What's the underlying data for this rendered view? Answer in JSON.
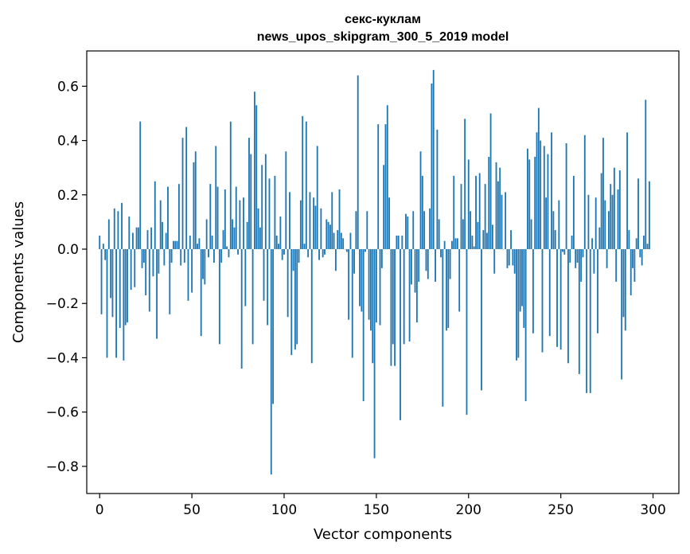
{
  "chart_data": {
    "type": "bar",
    "title": "секс-куклам",
    "subtitle": "news_upos_skipgram_300_5_2019 model",
    "xlabel": "Vector components",
    "ylabel": "Components values",
    "xlim": [
      -7,
      314
    ],
    "ylim": [
      -0.9,
      0.73
    ],
    "x_ticks": [
      0,
      50,
      100,
      150,
      200,
      250,
      300
    ],
    "x_tick_labels": [
      "0",
      "50",
      "100",
      "150",
      "200",
      "250",
      "300"
    ],
    "y_ticks": [
      -0.8,
      -0.6,
      -0.4,
      -0.2,
      0.0,
      0.2,
      0.4,
      0.6
    ],
    "y_tick_labels": [
      "−0.8",
      "−0.6",
      "−0.4",
      "−0.2",
      "0.0",
      "0.2",
      "0.4",
      "0.6"
    ],
    "grid": false,
    "bar_color": "#1f77b4",
    "values": [
      0.05,
      -0.24,
      0.02,
      -0.04,
      -0.4,
      0.11,
      -0.18,
      -0.25,
      0.15,
      -0.4,
      0.14,
      -0.29,
      0.17,
      -0.41,
      -0.28,
      -0.27,
      0.12,
      -0.15,
      0.06,
      -0.14,
      0.08,
      0.08,
      0.47,
      -0.07,
      -0.05,
      -0.17,
      0.07,
      -0.23,
      0.08,
      -0.1,
      0.25,
      -0.33,
      -0.09,
      0.18,
      0.1,
      -0.06,
      0.06,
      0.23,
      -0.24,
      -0.05,
      0.03,
      0.03,
      0.03,
      0.24,
      -0.06,
      0.41,
      -0.05,
      0.45,
      -0.19,
      0.05,
      -0.16,
      0.32,
      0.36,
      0.02,
      0.04,
      -0.32,
      -0.11,
      -0.13,
      0.11,
      -0.03,
      0.24,
      0.05,
      -0.05,
      0.38,
      0.23,
      -0.35,
      -0.05,
      0.07,
      0.22,
      0.01,
      -0.03,
      0.47,
      0.11,
      0.08,
      0.23,
      -0.02,
      0.18,
      -0.44,
      0.19,
      -0.21,
      0.1,
      0.41,
      0.35,
      -0.35,
      0.58,
      0.53,
      0.15,
      0.08,
      0.31,
      -0.19,
      0.35,
      -0.28,
      0.26,
      -0.83,
      -0.57,
      0.27,
      0.05,
      0.02,
      0.12,
      -0.04,
      -0.02,
      0.36,
      -0.25,
      0.21,
      -0.39,
      -0.08,
      -0.37,
      -0.35,
      -0.05,
      0.18,
      0.49,
      0.02,
      0.47,
      -0.03,
      0.21,
      -0.42,
      0.19,
      0.16,
      0.38,
      -0.04,
      0.15,
      -0.03,
      -0.02,
      0.11,
      0.1,
      0.09,
      0.21,
      0.06,
      -0.08,
      0.07,
      0.22,
      0.06,
      0.04,
      0.0,
      -0.01,
      -0.26,
      0.06,
      -0.4,
      -0.09,
      0.14,
      0.64,
      -0.21,
      -0.23,
      -0.56,
      -0.01,
      0.14,
      -0.26,
      -0.3,
      -0.42,
      -0.77,
      -0.27,
      0.46,
      -0.28,
      -0.07,
      0.31,
      0.46,
      0.53,
      0.19,
      -0.43,
      -0.35,
      -0.43,
      0.05,
      0.05,
      -0.63,
      0.05,
      -0.35,
      0.13,
      0.12,
      -0.34,
      -0.13,
      0.14,
      -0.16,
      -0.27,
      -0.12,
      0.36,
      0.27,
      0.14,
      -0.08,
      -0.11,
      0.15,
      0.61,
      0.66,
      -0.12,
      0.44,
      0.11,
      -0.03,
      -0.58,
      0.03,
      -0.3,
      -0.29,
      -0.11,
      0.03,
      0.27,
      0.04,
      0.04,
      -0.23,
      0.24,
      0.11,
      0.48,
      -0.61,
      0.33,
      0.14,
      0.05,
      0.01,
      0.27,
      0.1,
      0.28,
      -0.52,
      0.07,
      0.24,
      0.06,
      0.34,
      0.5,
      0.09,
      -0.09,
      0.32,
      0.25,
      0.3,
      0.2,
      0.0,
      0.21,
      -0.07,
      -0.06,
      0.07,
      -0.06,
      -0.09,
      -0.41,
      -0.4,
      -0.23,
      -0.21,
      -0.29,
      -0.56,
      0.37,
      0.33,
      0.11,
      -0.31,
      0.34,
      0.43,
      0.52,
      0.4,
      -0.38,
      0.38,
      0.19,
      0.35,
      -0.32,
      0.43,
      0.14,
      0.07,
      -0.36,
      0.18,
      -0.37,
      -0.01,
      -0.02,
      0.39,
      -0.42,
      -0.05,
      0.05,
      0.27,
      -0.07,
      -0.05,
      -0.46,
      -0.12,
      -0.03,
      0.42,
      -0.53,
      0.2,
      -0.53,
      0.04,
      -0.09,
      0.19,
      -0.31,
      0.08,
      0.28,
      0.41,
      0.18,
      -0.07,
      0.14,
      0.24,
      0.2,
      0.3,
      -0.12,
      0.22,
      0.29,
      -0.48,
      -0.25,
      -0.3,
      0.43,
      0.07,
      -0.17,
      -0.07,
      -0.12,
      0.04,
      0.26,
      -0.03,
      -0.06,
      0.05,
      0.55,
      0.02,
      0.25
    ]
  }
}
